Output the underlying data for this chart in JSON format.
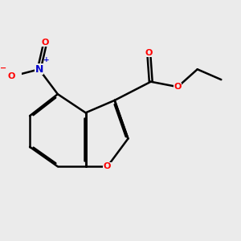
{
  "background_color": "#ebebeb",
  "bond_color": "#000000",
  "bond_width": 1.8,
  "atom_colors": {
    "O": "#ff0000",
    "N": "#0000cc",
    "C": "#000000"
  },
  "figsize": [
    3.0,
    3.0
  ],
  "dpi": 100
}
